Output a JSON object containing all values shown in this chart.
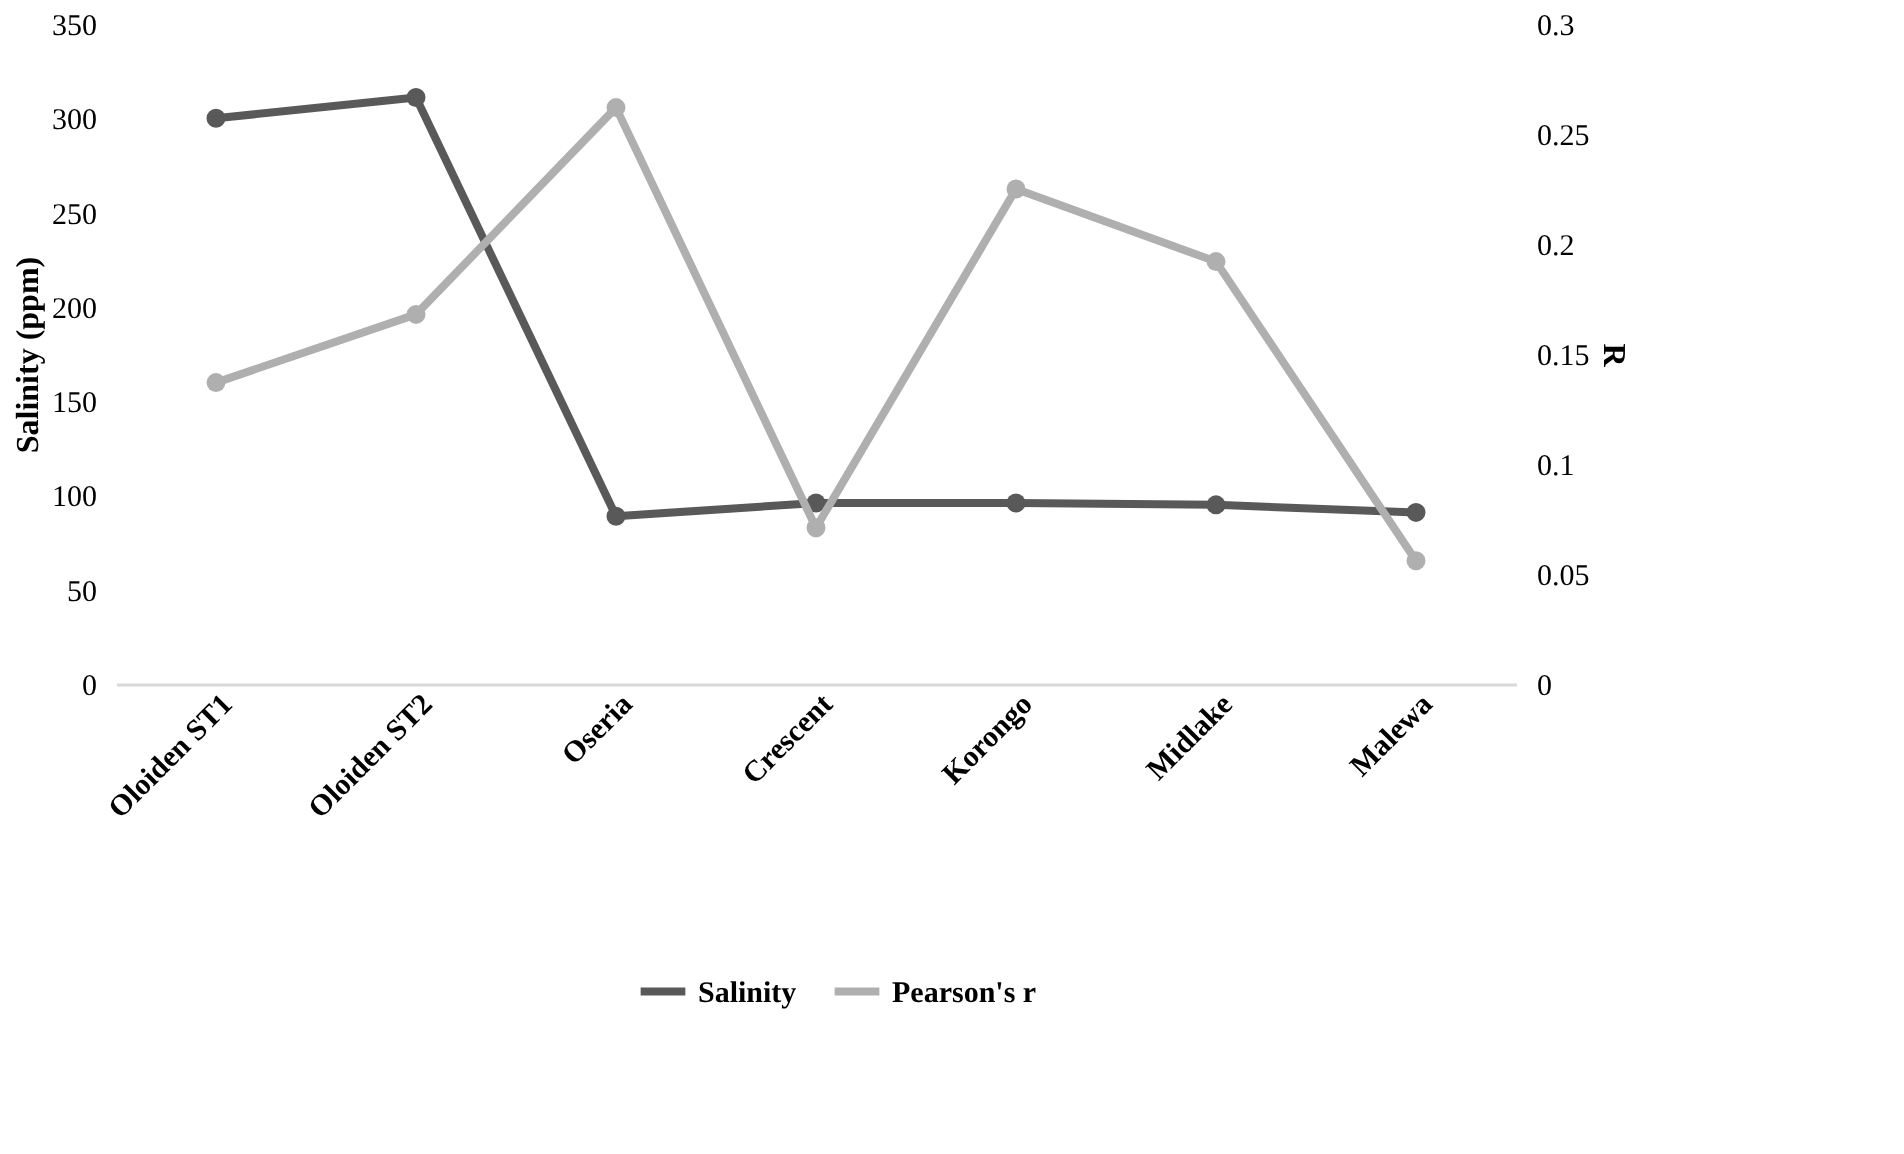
{
  "chart_data": {
    "type": "line",
    "ylabel": "Salinity (ppm)",
    "y2label": "R",
    "categories": [
      "Oloiden ST1",
      "Oloiden ST2",
      "Oseria",
      "Crescent",
      "Korongo",
      "Midlake",
      "Malewa"
    ],
    "series": [
      {
        "name": "Salinity",
        "color": "#595959",
        "values": [
          300,
          311,
          89,
          96,
          96,
          95,
          91
        ]
      },
      {
        "name": "Pearson's r",
        "color": "#afafaf",
        "axis": "y2",
        "values": [
          0.137,
          0.168,
          0.262,
          0.071,
          0.225,
          0.192,
          0.056
        ]
      }
    ],
    "ylim": [
      0,
      350
    ],
    "yticks": [
      0,
      50,
      100,
      150,
      200,
      250,
      300,
      350
    ],
    "y2lim": [
      0,
      0.3
    ],
    "y2ticks": [
      0,
      0.05,
      0.1,
      0.15,
      0.2,
      0.25,
      0.3
    ],
    "grid": false,
    "legend": "bottom",
    "marker": "circle",
    "line_style": "solid"
  }
}
